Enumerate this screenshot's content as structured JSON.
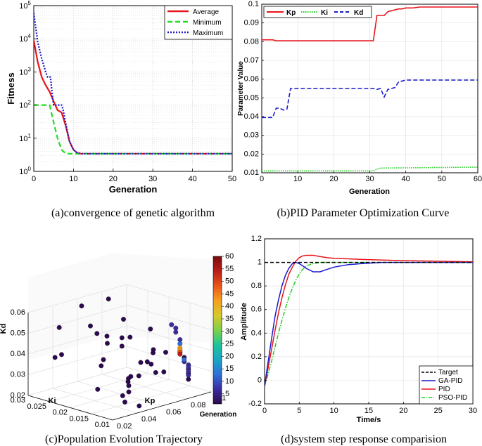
{
  "chart_data": [
    {
      "id": "a",
      "type": "line",
      "yscale": "log",
      "xlabel": "Generation",
      "ylabel": "Fitness",
      "xlim": [
        0,
        50
      ],
      "ylim": [
        1,
        100000
      ],
      "xticks": [
        0,
        10,
        20,
        30,
        40,
        50
      ],
      "yticks": [
        1,
        10,
        100,
        1000,
        10000,
        100000
      ],
      "ytick_labels": [
        {
          "base": "10",
          "exp": "0"
        },
        {
          "base": "10",
          "exp": "1"
        },
        {
          "base": "10",
          "exp": "2"
        },
        {
          "base": "10",
          "exp": "3"
        },
        {
          "base": "10",
          "exp": "4"
        },
        {
          "base": "10",
          "exp": "5"
        }
      ],
      "legend_position": "top-right",
      "caption": "(a)convergence of genetic algorithm",
      "series": [
        {
          "name": "Average",
          "color": "#e8141b",
          "dash": "solid",
          "x": [
            0,
            1,
            2,
            3,
            4,
            5,
            6,
            7,
            8,
            9,
            10,
            11,
            12,
            50
          ],
          "y": [
            9000,
            2000,
            700,
            400,
            250,
            130,
            70,
            60,
            25,
            8,
            4.5,
            3.6,
            3.4,
            3.4
          ]
        },
        {
          "name": "Minimum",
          "color": "#22dd22",
          "dash": "dashed",
          "x": [
            0,
            4,
            5,
            6,
            7,
            8,
            9,
            50
          ],
          "y": [
            100,
            100,
            30,
            10,
            4.5,
            3.5,
            3.4,
            3.4
          ]
        },
        {
          "name": "Maximum",
          "color": "#1a1acc",
          "dash": "dotted",
          "x": [
            0,
            1,
            2,
            3,
            3.5,
            4.2,
            4.6,
            5,
            6,
            7,
            7.3,
            8,
            9,
            10,
            11,
            12,
            50
          ],
          "y": [
            60000,
            8000,
            2500,
            1000,
            700,
            700,
            250,
            100,
            100,
            100,
            80,
            30,
            8,
            4.5,
            3.6,
            3.4,
            3.4
          ]
        }
      ]
    },
    {
      "id": "b",
      "type": "line",
      "xlabel": "Generation",
      "ylabel": "Parameter Value",
      "xlim": [
        0,
        60
      ],
      "ylim": [
        0.01,
        0.1
      ],
      "xticks": [
        0,
        10,
        20,
        30,
        40,
        50,
        60
      ],
      "yticks": [
        0.01,
        0.02,
        0.03,
        0.04,
        0.05,
        0.06,
        0.07,
        0.08,
        0.09,
        0.1
      ],
      "ytick_labels": [
        "0.01",
        "0.02",
        "0.03",
        "0.04",
        "0.05",
        "0.06",
        "0.07",
        "0.08",
        "0.09",
        "0.1"
      ],
      "legend_position": "top",
      "caption": "(b)PID Parameter Optimization Curve",
      "series": [
        {
          "name": "Kp",
          "color": "#e8141b",
          "dash": "solid",
          "x": [
            0,
            3,
            4,
            31,
            32,
            34,
            35,
            36,
            37,
            38,
            39,
            40,
            42,
            44,
            60
          ],
          "y": [
            0.081,
            0.081,
            0.0805,
            0.0805,
            0.094,
            0.094,
            0.096,
            0.0965,
            0.097,
            0.0975,
            0.0975,
            0.098,
            0.098,
            0.0985,
            0.0985
          ]
        },
        {
          "name": "Ki",
          "color": "#22cc22",
          "dash": "dotted",
          "x": [
            0,
            31,
            32,
            33,
            60
          ],
          "y": [
            0.011,
            0.011,
            0.012,
            0.0125,
            0.013
          ]
        },
        {
          "name": "Kd",
          "color": "#1a1acc",
          "dash": "dashed",
          "x": [
            0,
            3,
            4,
            5,
            6,
            7,
            8,
            9,
            10,
            31,
            32,
            33,
            34,
            35,
            36,
            37,
            38,
            39,
            40,
            60
          ],
          "y": [
            0.0395,
            0.0395,
            0.0445,
            0.0445,
            0.0435,
            0.044,
            0.055,
            0.055,
            0.055,
            0.055,
            0.0545,
            0.055,
            0.0505,
            0.0545,
            0.055,
            0.0555,
            0.0585,
            0.059,
            0.0595,
            0.0595
          ]
        }
      ]
    },
    {
      "id": "c",
      "type": "scatter",
      "title": "",
      "xlabel": "Kp",
      "ylabel": "Ki",
      "zlabel": "Kd",
      "colorbar_label": "Generation",
      "colorbar_ticks": [
        5,
        10,
        15,
        20,
        25,
        30,
        35,
        40,
        45,
        50,
        55,
        60
      ],
      "xlim": [
        0.02,
        0.1
      ],
      "ylim": [
        0.01,
        0.03
      ],
      "zlim": [
        0.02,
        0.06
      ],
      "xticks": [
        0.02,
        0.04,
        0.06,
        0.08,
        0.1
      ],
      "yticks": [
        0.01,
        0.015,
        0.02,
        0.025,
        0.03
      ],
      "zticks": [
        0.02,
        0.03,
        0.04,
        0.05,
        0.06
      ],
      "xtick_labels": [
        "0.02",
        "0.04",
        "0.06",
        "0.08",
        "0.1"
      ],
      "ytick_labels": [
        "0.01",
        "0.015",
        "0.02",
        "0.025",
        "0.03"
      ],
      "ztick_labels": [
        "0.02",
        "0.03",
        "0.04",
        "0.05",
        "0.06"
      ],
      "caption": "(c)Population Evolution Trajectory",
      "points": [
        {
          "kp": 0.035,
          "ki": 0.027,
          "kd": 0.052,
          "gen": 1
        },
        {
          "kp": 0.06,
          "ki": 0.029,
          "kd": 0.057,
          "gen": 1
        },
        {
          "kp": 0.075,
          "ki": 0.027,
          "kd": 0.059,
          "gen": 1
        },
        {
          "kp": 0.05,
          "ki": 0.024,
          "kd": 0.052,
          "gen": 2
        },
        {
          "kp": 0.045,
          "ki": 0.021,
          "kd": 0.051,
          "gen": 1
        },
        {
          "kp": 0.055,
          "ki": 0.018,
          "kd": 0.049,
          "gen": 1
        },
        {
          "kp": 0.07,
          "ki": 0.022,
          "kd": 0.053,
          "gen": 2
        },
        {
          "kp": 0.03,
          "ki": 0.025,
          "kd": 0.041,
          "gen": 1
        },
        {
          "kp": 0.04,
          "ki": 0.018,
          "kd": 0.041,
          "gen": 1
        },
        {
          "kp": 0.05,
          "ki": 0.02,
          "kd": 0.046,
          "gen": 2
        },
        {
          "kp": 0.055,
          "ki": 0.018,
          "kd": 0.045,
          "gen": 1
        },
        {
          "kp": 0.065,
          "ki": 0.019,
          "kd": 0.047,
          "gen": 1
        },
        {
          "kp": 0.06,
          "ki": 0.023,
          "kd": 0.046,
          "gen": 2
        },
        {
          "kp": 0.07,
          "ki": 0.012,
          "kd": 0.043,
          "gen": 1
        },
        {
          "kp": 0.06,
          "ki": 0.015,
          "kd": 0.038,
          "gen": 1
        },
        {
          "kp": 0.065,
          "ki": 0.014,
          "kd": 0.037,
          "gen": 1
        },
        {
          "kp": 0.055,
          "ki": 0.012,
          "kd": 0.041,
          "gen": 1
        },
        {
          "kp": 0.065,
          "ki": 0.011,
          "kd": 0.035,
          "gen": 2
        },
        {
          "kp": 0.085,
          "ki": 0.02,
          "kd": 0.047,
          "gen": 2
        },
        {
          "kp": 0.045,
          "ki": 0.013,
          "kd": 0.035,
          "gen": 1
        },
        {
          "kp": 0.05,
          "ki": 0.015,
          "kd": 0.032,
          "gen": 1
        },
        {
          "kp": 0.04,
          "ki": 0.012,
          "kd": 0.032,
          "gen": 1
        },
        {
          "kp": 0.055,
          "ki": 0.01,
          "kd": 0.037,
          "gen": 1
        },
        {
          "kp": 0.07,
          "ki": 0.015,
          "kd": 0.041,
          "gen": 2
        },
        {
          "kp": 0.06,
          "ki": 0.012,
          "kd": 0.046,
          "gen": 1
        },
        {
          "kp": 0.025,
          "ki": 0.015,
          "kd": 0.031,
          "gen": 1
        },
        {
          "kp": 0.035,
          "ki": 0.012,
          "kd": 0.028,
          "gen": 1
        },
        {
          "kp": 0.03,
          "ki": 0.01,
          "kd": 0.027,
          "gen": 1
        },
        {
          "kp": 0.045,
          "ki": 0.011,
          "kd": 0.022,
          "gen": 1
        },
        {
          "kp": 0.04,
          "ki": 0.012,
          "kd": 0.029,
          "gen": 1
        },
        {
          "kp": 0.055,
          "ki": 0.014,
          "kd": 0.033,
          "gen": 2
        },
        {
          "kp": 0.045,
          "ki": 0.02,
          "kd": 0.036,
          "gen": 1
        },
        {
          "kp": 0.06,
          "ki": 0.018,
          "kd": 0.027,
          "gen": 1
        },
        {
          "kp": 0.035,
          "ki": 0.028,
          "kd": 0.037,
          "gen": 1
        },
        {
          "kp": 0.085,
          "ki": 0.015,
          "kd": 0.052,
          "gen": 4
        },
        {
          "kp": 0.085,
          "ki": 0.014,
          "kd": 0.051,
          "gen": 7
        },
        {
          "kp": 0.085,
          "ki": 0.014,
          "kd": 0.049,
          "gen": 6
        },
        {
          "kp": 0.085,
          "ki": 0.013,
          "kd": 0.046,
          "gen": 8
        },
        {
          "kp": 0.085,
          "ki": 0.013,
          "kd": 0.044,
          "gen": 10
        },
        {
          "kp": 0.085,
          "ki": 0.013,
          "kd": 0.04,
          "gen": 12
        },
        {
          "kp": 0.085,
          "ki": 0.013,
          "kd": 0.042,
          "gen": 40
        },
        {
          "kp": 0.085,
          "ki": 0.013,
          "kd": 0.041,
          "gen": 44
        },
        {
          "kp": 0.085,
          "ki": 0.013,
          "kd": 0.04,
          "gen": 48
        },
        {
          "kp": 0.085,
          "ki": 0.013,
          "kd": 0.039,
          "gen": 52
        },
        {
          "kp": 0.085,
          "ki": 0.012,
          "kd": 0.038,
          "gen": 3
        },
        {
          "kp": 0.085,
          "ki": 0.012,
          "kd": 0.037,
          "gen": 15
        },
        {
          "kp": 0.085,
          "ki": 0.012,
          "kd": 0.036,
          "gen": 5
        },
        {
          "kp": 0.085,
          "ki": 0.011,
          "kd": 0.035,
          "gen": 4
        },
        {
          "kp": 0.085,
          "ki": 0.011,
          "kd": 0.034,
          "gen": 6
        },
        {
          "kp": 0.085,
          "ki": 0.011,
          "kd": 0.033,
          "gen": 3
        },
        {
          "kp": 0.085,
          "ki": 0.011,
          "kd": 0.032,
          "gen": 5
        },
        {
          "kp": 0.085,
          "ki": 0.011,
          "kd": 0.031,
          "gen": 2
        },
        {
          "kp": 0.085,
          "ki": 0.011,
          "kd": 0.03,
          "gen": 4
        },
        {
          "kp": 0.085,
          "ki": 0.011,
          "kd": 0.028,
          "gen": 3
        }
      ]
    },
    {
      "id": "d",
      "type": "line",
      "xlabel": "Time/s",
      "ylabel": "Amplitude",
      "xlim": [
        0,
        30
      ],
      "ylim": [
        -0.2,
        1.2
      ],
      "xticks": [
        0,
        5,
        10,
        15,
        20,
        25,
        30
      ],
      "yticks": [
        -0.2,
        0,
        0.2,
        0.4,
        0.6,
        0.8,
        1,
        1.2
      ],
      "ytick_labels": [
        "-0.2",
        "0",
        "0.2",
        "0.4",
        "0.6",
        "0.8",
        "1",
        "1.2"
      ],
      "legend_position": "bottom-right",
      "caption": "(d)system step response comparision",
      "series": [
        {
          "name": "Target",
          "color": "#000000",
          "dash": "dashed",
          "x": [
            0,
            30
          ],
          "y": [
            1,
            1
          ]
        },
        {
          "name": "GA-PID",
          "color": "#1a1acc",
          "dash": "solid",
          "x": [
            0,
            0.5,
            1,
            1.5,
            2,
            2.5,
            3,
            3.5,
            4,
            4.5,
            5,
            5.5,
            6,
            7,
            8,
            9,
            10,
            12,
            14,
            17,
            20,
            25,
            30
          ],
          "y": [
            -0.05,
            0.15,
            0.35,
            0.54,
            0.68,
            0.8,
            0.89,
            0.95,
            0.99,
            1.0,
            0.99,
            0.97,
            0.95,
            0.92,
            0.92,
            0.94,
            0.96,
            0.98,
            0.99,
            1.0,
            1.0,
            1.0,
            1.0
          ]
        },
        {
          "name": "PID",
          "color": "#e8141b",
          "dash": "solid",
          "x": [
            0,
            0.5,
            1,
            1.5,
            2,
            2.5,
            3,
            3.5,
            4,
            4.5,
            5,
            5.5,
            6,
            7,
            8,
            9,
            10,
            12,
            14,
            17,
            20,
            25,
            30
          ],
          "y": [
            -0.05,
            0.1,
            0.26,
            0.42,
            0.57,
            0.7,
            0.81,
            0.9,
            0.96,
            1.01,
            1.04,
            1.055,
            1.06,
            1.06,
            1.05,
            1.04,
            1.035,
            1.03,
            1.025,
            1.02,
            1.015,
            1.01,
            1.005
          ]
        },
        {
          "name": "PSO-PID",
          "color": "#22cc22",
          "dash": "dashdot",
          "x": [
            0,
            0.5,
            1,
            1.5,
            2,
            2.5,
            3,
            3.5,
            4,
            4.5,
            5,
            5.5,
            6,
            7,
            8,
            9,
            10,
            12,
            15,
            20,
            25,
            30
          ],
          "y": [
            -0.05,
            0.05,
            0.16,
            0.28,
            0.4,
            0.51,
            0.61,
            0.7,
            0.78,
            0.85,
            0.9,
            0.94,
            0.97,
            0.99,
            1.0,
            1.0,
            1.0,
            1.0,
            1.0,
            1.0,
            1.0,
            1.0
          ]
        }
      ]
    }
  ],
  "colormap": [
    "#2c0a4e",
    "#3a2da0",
    "#2f6fd6",
    "#16a6c6",
    "#1fc39b",
    "#7fd146",
    "#d8c82a",
    "#f5a01f",
    "#e8561a",
    "#b71f1a",
    "#7a0a0a"
  ]
}
